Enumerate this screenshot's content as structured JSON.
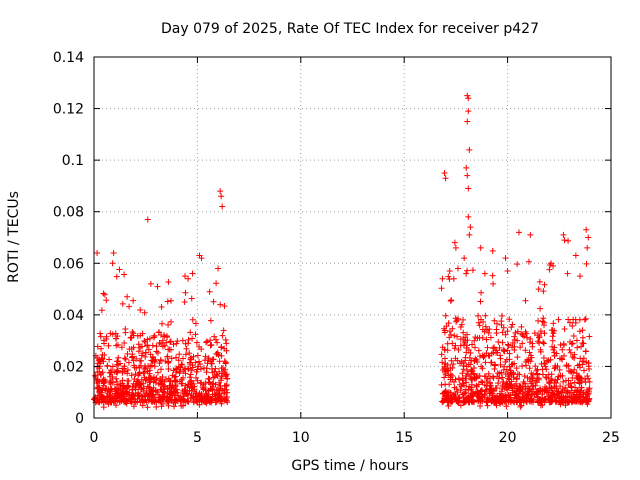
{
  "chart_data": {
    "type": "scatter",
    "title": "Day 079 of 2025, Rate Of TEC Index for receiver p427",
    "xlabel": "GPS time / hours",
    "ylabel": "ROTI / TECUs",
    "xlim": [
      0,
      25
    ],
    "ylim": [
      0,
      0.14
    ],
    "xticks": [
      "0",
      "5",
      "10",
      "15",
      "20",
      "25"
    ],
    "yticks": [
      "0",
      "0.02",
      "0.04",
      "0.06",
      "0.08",
      "0.1",
      "0.12",
      "0.14"
    ],
    "xtick_values": [
      0,
      5,
      10,
      15,
      20,
      25
    ],
    "ytick_values": [
      0,
      0.02,
      0.04,
      0.06,
      0.08,
      0.1,
      0.12,
      0.14
    ],
    "grid": true,
    "marker": "plus",
    "color": "#ff0000",
    "series": [
      {
        "name": "ROTI",
        "segments": [
          {
            "x_start": 0.0,
            "x_end": 6.45,
            "typical_max": 0.03,
            "spike_max": 0.064
          },
          {
            "x_start": 16.8,
            "x_end": 24.0,
            "typical_max": 0.035,
            "spike_max": 0.073
          }
        ],
        "points": [
          {
            "x": 2.6,
            "y": 0.077
          },
          {
            "x": 6.1,
            "y": 0.088
          },
          {
            "x": 6.15,
            "y": 0.086
          },
          {
            "x": 6.2,
            "y": 0.082
          },
          {
            "x": 0.15,
            "y": 0.064
          },
          {
            "x": 0.95,
            "y": 0.064
          },
          {
            "x": 0.9,
            "y": 0.06
          },
          {
            "x": 4.4,
            "y": 0.055
          },
          {
            "x": 4.55,
            "y": 0.054
          },
          {
            "x": 5.1,
            "y": 0.063
          },
          {
            "x": 5.2,
            "y": 0.062
          },
          {
            "x": 6.0,
            "y": 0.058
          },
          {
            "x": 2.75,
            "y": 0.052
          },
          {
            "x": 1.6,
            "y": 0.047
          },
          {
            "x": 16.95,
            "y": 0.095
          },
          {
            "x": 17.0,
            "y": 0.093
          },
          {
            "x": 18.05,
            "y": 0.125
          },
          {
            "x": 18.1,
            "y": 0.124
          },
          {
            "x": 18.1,
            "y": 0.119
          },
          {
            "x": 18.05,
            "y": 0.115
          },
          {
            "x": 18.15,
            "y": 0.104
          },
          {
            "x": 18.0,
            "y": 0.097
          },
          {
            "x": 18.05,
            "y": 0.094
          },
          {
            "x": 18.1,
            "y": 0.089
          },
          {
            "x": 18.1,
            "y": 0.078
          },
          {
            "x": 18.2,
            "y": 0.074
          },
          {
            "x": 18.15,
            "y": 0.071
          },
          {
            "x": 17.5,
            "y": 0.066
          },
          {
            "x": 17.45,
            "y": 0.068
          },
          {
            "x": 18.7,
            "y": 0.066
          },
          {
            "x": 20.55,
            "y": 0.072
          },
          {
            "x": 21.1,
            "y": 0.071
          },
          {
            "x": 19.9,
            "y": 0.062
          },
          {
            "x": 22.7,
            "y": 0.071
          },
          {
            "x": 22.75,
            "y": 0.069
          },
          {
            "x": 23.8,
            "y": 0.073
          },
          {
            "x": 23.9,
            "y": 0.07
          },
          {
            "x": 23.85,
            "y": 0.066
          },
          {
            "x": 22.1,
            "y": 0.06
          },
          {
            "x": 22.2,
            "y": 0.059
          },
          {
            "x": 16.85,
            "y": 0.054
          },
          {
            "x": 17.9,
            "y": 0.062
          },
          {
            "x": 17.6,
            "y": 0.058
          },
          {
            "x": 17.2,
            "y": 0.057
          },
          {
            "x": 23.3,
            "y": 0.063
          },
          {
            "x": 20.0,
            "y": 0.057
          },
          {
            "x": 17.4,
            "y": 0.054
          },
          {
            "x": 18.9,
            "y": 0.056
          },
          {
            "x": 19.3,
            "y": 0.052
          },
          {
            "x": 21.5,
            "y": 0.05
          },
          {
            "x": 22.9,
            "y": 0.056
          },
          {
            "x": 23.5,
            "y": 0.055
          }
        ]
      }
    ]
  }
}
